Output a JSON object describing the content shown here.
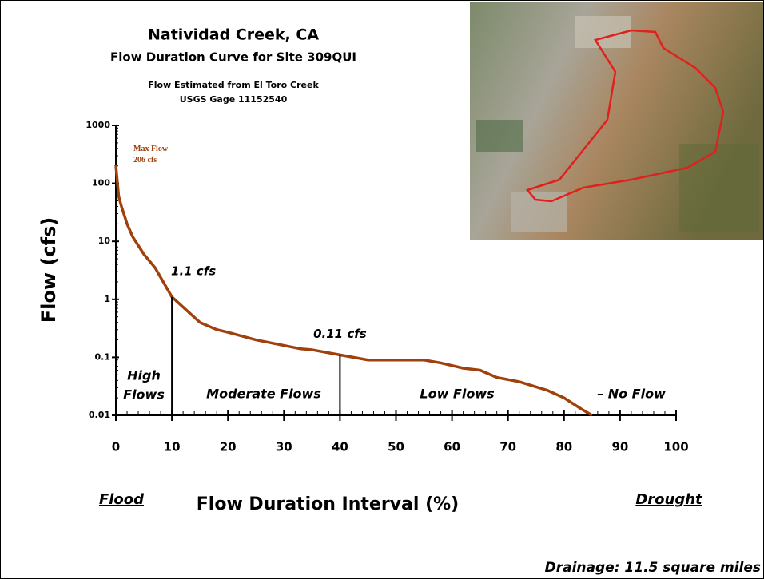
{
  "chart_data": {
    "type": "line",
    "title": "Natividad Creek, CA",
    "subtitle": "Flow Duration Curve for Site 309QUI",
    "notes": [
      "Flow Estimated from El Toro Creek",
      "USGS Gage 11152540"
    ],
    "x_label": "Flow Duration Interval (%)",
    "y_label": "Flow (cfs)",
    "x_end_labels": [
      "Flood",
      "Drought"
    ],
    "footer": "Drainage: 11.5 square miles",
    "log_y": true,
    "xlim": [
      0,
      100
    ],
    "xticks": [
      0,
      10,
      20,
      30,
      40,
      50,
      60,
      70,
      80,
      90,
      100
    ],
    "ylim": [
      0.01,
      1000
    ],
    "yticks": [
      0.01,
      0.1,
      1,
      10,
      100,
      1000
    ],
    "x": [
      0,
      0.5,
      1,
      2,
      3,
      5,
      7,
      10,
      13,
      15,
      18,
      20,
      25,
      30,
      33,
      35,
      40,
      45,
      50,
      55,
      58,
      62,
      65,
      68,
      72,
      77,
      80,
      83,
      85
    ],
    "series": [
      {
        "name": "Flow",
        "color": "#a0410d",
        "values": [
          206,
          60,
          40,
          20,
          12,
          6,
          3.5,
          1.1,
          0.6,
          0.4,
          0.3,
          0.27,
          0.2,
          0.16,
          0.14,
          0.135,
          0.11,
          0.09,
          0.09,
          0.09,
          0.08,
          0.065,
          0.06,
          0.045,
          0.038,
          0.027,
          0.02,
          0.013,
          0.01
        ]
      }
    ],
    "annotations": [
      {
        "lines": [
          "Max Flow",
          "206 cfs"
        ],
        "value": 206,
        "x": 0
      },
      {
        "lines": [
          "1.1 cfs"
        ],
        "value": 1.1,
        "x": 10
      },
      {
        "lines": [
          "0.11 cfs"
        ],
        "value": 0.11,
        "x": 40
      }
    ],
    "regions": [
      [
        "High",
        "Flows"
      ],
      [
        "Moderate Flows"
      ],
      [
        "Low Flows"
      ],
      [
        "– No Flow"
      ]
    ]
  }
}
